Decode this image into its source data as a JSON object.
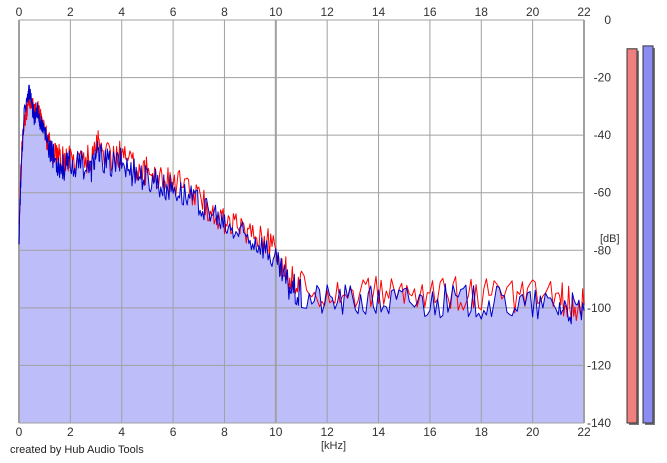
{
  "app": {
    "credit": "created by Hub Audio Tools"
  },
  "colors": {
    "background": "#ffffff",
    "plot_fill": "#bdbdfa",
    "grid": "#a0a0a0",
    "left_channel": "#ff0000",
    "right_channel": "#0000c8",
    "left_meter": "#f08080",
    "right_meter": "#8c8cf5"
  },
  "chart_data": {
    "type": "line",
    "title": "",
    "xlabel": "[kHz]",
    "ylabel": "[dB]",
    "xlim": [
      0,
      22
    ],
    "ylim": [
      -140,
      0
    ],
    "x_ticks": [
      "0",
      "2",
      "4",
      "6",
      "8",
      "10",
      "12",
      "14",
      "16",
      "18",
      "20",
      "22"
    ],
    "y_ticks": [
      "0",
      "-20",
      "-40",
      "-60",
      "-80",
      "-100",
      "-120",
      "-140"
    ],
    "grid": true,
    "series": [
      {
        "channel": "left",
        "color": "#ff0000",
        "x": [
          0.0,
          0.1,
          0.2,
          0.3,
          0.4,
          0.5,
          0.6,
          0.7,
          0.8,
          0.9,
          1.0,
          1.2,
          1.4,
          1.6,
          1.8,
          2.0,
          2.4,
          2.8,
          3.0,
          3.2,
          3.6,
          4.0,
          4.4,
          4.8,
          5.2,
          5.6,
          6.0,
          6.5,
          7.0,
          7.5,
          8.0,
          8.5,
          9.0,
          9.5,
          10.0,
          10.3,
          10.6,
          11.0,
          12.0,
          13.0,
          14.0,
          15.0,
          16.0,
          17.0,
          18.0,
          19.0,
          20.0,
          21.0,
          21.5,
          22.0
        ],
        "y": [
          -72,
          -45,
          -35,
          -32,
          -28,
          -29,
          -32,
          -30,
          -33,
          -35,
          -38,
          -44,
          -46,
          -48,
          -49,
          -48,
          -47,
          -49,
          -42,
          -45,
          -48,
          -46,
          -50,
          -52,
          -53,
          -55,
          -56,
          -58,
          -62,
          -66,
          -70,
          -72,
          -73,
          -75,
          -81,
          -86,
          -90,
          -93,
          -94,
          -95,
          -95,
          -95,
          -95,
          -95,
          -95,
          -96,
          -96,
          -96,
          -98,
          -99
        ]
      },
      {
        "channel": "right",
        "color": "#0000c8",
        "x": [
          0.0,
          0.1,
          0.2,
          0.3,
          0.4,
          0.5,
          0.6,
          0.7,
          0.8,
          0.9,
          1.0,
          1.2,
          1.4,
          1.6,
          1.8,
          2.0,
          2.4,
          2.8,
          3.0,
          3.2,
          3.6,
          4.0,
          4.4,
          4.8,
          5.2,
          5.6,
          6.0,
          6.5,
          7.0,
          7.5,
          8.0,
          8.5,
          9.0,
          9.5,
          10.0,
          10.3,
          10.6,
          11.0,
          12.0,
          13.0,
          14.0,
          15.0,
          16.0,
          17.0,
          18.0,
          19.0,
          20.0,
          21.0,
          21.5,
          22.0
        ],
        "y": [
          -75,
          -48,
          -33,
          -28,
          -25,
          -30,
          -34,
          -31,
          -35,
          -37,
          -40,
          -46,
          -48,
          -50,
          -51,
          -50,
          -50,
          -52,
          -46,
          -48,
          -50,
          -49,
          -53,
          -54,
          -56,
          -58,
          -58,
          -61,
          -64,
          -68,
          -72,
          -74,
          -76,
          -78,
          -84,
          -89,
          -93,
          -96,
          -97,
          -97,
          -98,
          -97,
          -98,
          -97,
          -98,
          -98,
          -99,
          -99,
          -100,
          -101
        ]
      }
    ],
    "level_meters": [
      {
        "channel": "left",
        "level_db": -10,
        "color": "#f08080"
      },
      {
        "channel": "right",
        "level_db": -9,
        "color": "#8c8cf5"
      }
    ]
  }
}
